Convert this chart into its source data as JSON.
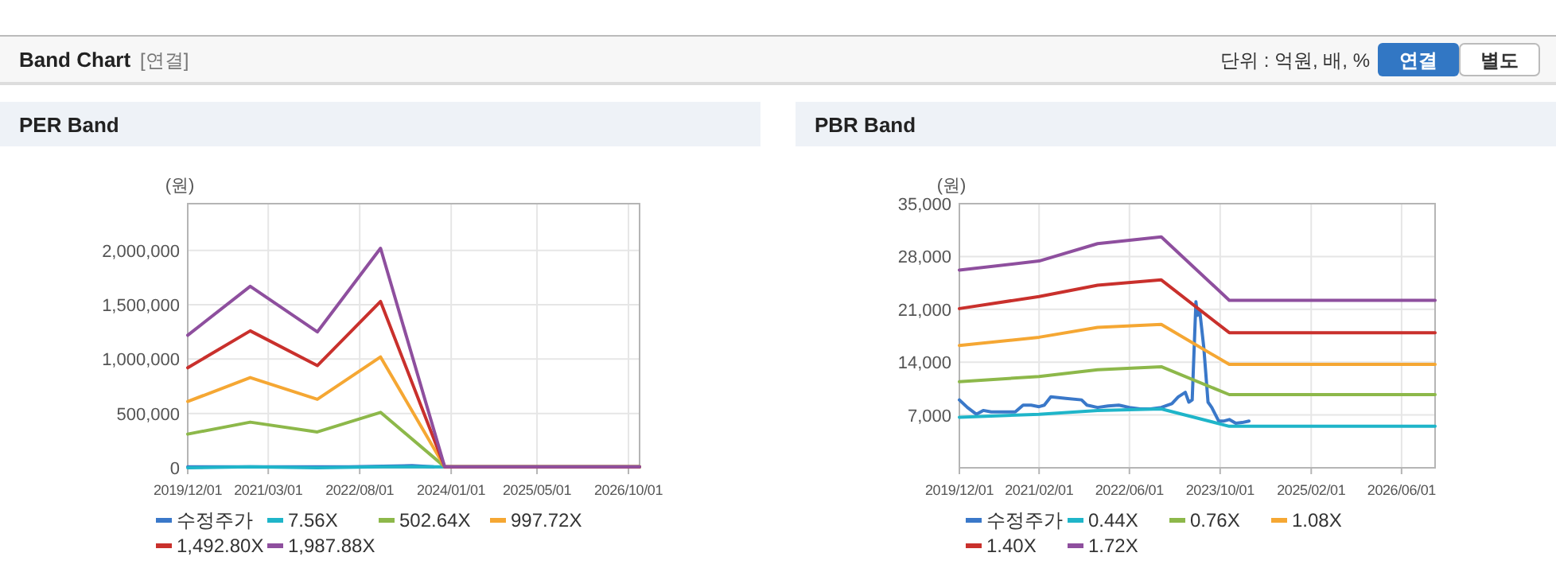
{
  "chart_data": [
    {
      "type": "other",
      "title": "Band Chart",
      "annotations": [
        "[연결]",
        "단위 : 억원, 배, %",
        "연결",
        "별도"
      ]
    },
    {
      "type": "line",
      "title": "PER Band",
      "ylabel": "(원)",
      "grid": true,
      "legend": "bottom",
      "xlim": [
        "2019-12-01",
        "2026-12-03"
      ],
      "ylim": [
        0,
        2430000
      ],
      "xticks": [
        {
          "value": "2019-12-01",
          "label": "2019/12/01"
        },
        {
          "value": "2021-03-01",
          "label": "2021/03/01"
        },
        {
          "value": "2022-08-01",
          "label": "2022/08/01"
        },
        {
          "value": "2024-01-01",
          "label": "2024/01/01"
        },
        {
          "value": "2025-05-01",
          "label": "2025/05/01"
        },
        {
          "value": "2026-10-01",
          "label": "2026/10/01"
        }
      ],
      "yticks": [
        0,
        {
          "value": 500000,
          "label": "500,000"
        },
        {
          "value": 1000000,
          "label": "1,000,000"
        },
        {
          "value": 1500000,
          "label": "1,500,000"
        },
        {
          "value": 2000000,
          "label": "2,000,000"
        }
      ],
      "series": [
        {
          "name": "수정주가",
          "color": "#3a78c9",
          "x": [
            "2019-12-01",
            "2020-05-20",
            "2021-04-05",
            "2022-06-01",
            "2023-05-24",
            "2023-09-23"
          ],
          "values": [
            10000,
            10000,
            10000,
            10000,
            20000,
            10000
          ]
        },
        {
          "name": "7.56X",
          "color": "#1fb5c9",
          "x": [
            "2019-12-01",
            "2020-11-19",
            "2021-12-04",
            "2022-11-27",
            "2023-11-25",
            "2026-12-03"
          ],
          "values": [
            0,
            10000,
            0,
            10000,
            10000,
            10000
          ]
        },
        {
          "name": "502.64X",
          "color": "#8db84a",
          "x": [
            "2019-12-01",
            "2020-11-19",
            "2021-12-04",
            "2022-11-27",
            "2023-11-25",
            "2026-12-03"
          ],
          "values": [
            310000,
            420000,
            330000,
            510000,
            10000,
            10000
          ]
        },
        {
          "name": "997.72X",
          "color": "#f5a733",
          "x": [
            "2019-12-01",
            "2020-11-19",
            "2021-12-04",
            "2022-11-27",
            "2023-11-25",
            "2026-12-03"
          ],
          "values": [
            610000,
            830000,
            630000,
            1020000,
            10000,
            10000
          ]
        },
        {
          "name": "1,492.80X",
          "color": "#c9302c",
          "x": [
            "2019-12-01",
            "2020-11-19",
            "2021-12-04",
            "2022-11-27",
            "2023-11-25",
            "2026-12-03"
          ],
          "values": [
            920000,
            1260000,
            940000,
            1530000,
            10000,
            10000
          ]
        },
        {
          "name": "1,987.88X",
          "color": "#8e4f9e",
          "x": [
            "2019-12-01",
            "2020-11-19",
            "2021-12-04",
            "2022-11-27",
            "2023-11-25",
            "2026-12-03"
          ],
          "values": [
            1220000,
            1670000,
            1250000,
            2020000,
            10000,
            10000
          ]
        }
      ]
    },
    {
      "type": "line",
      "title": "PBR Band",
      "ylabel": "(원)",
      "grid": true,
      "legend": "bottom",
      "xlim": [
        "2019-12-01",
        "2026-11-28"
      ],
      "ylim": [
        0,
        35000
      ],
      "xticks": [
        {
          "value": "2019-12-01",
          "label": "2019/12/01"
        },
        {
          "value": "2021-02-01",
          "label": "2021/02/01"
        },
        {
          "value": "2022-06-01",
          "label": "2022/06/01"
        },
        {
          "value": "2023-10-01",
          "label": "2023/10/01"
        },
        {
          "value": "2025-02-01",
          "label": "2025/02/01"
        },
        {
          "value": "2026-06-01",
          "label": "2026/06/01"
        }
      ],
      "yticks": [
        {
          "value": 7000,
          "label": "7,000"
        },
        {
          "value": 14000,
          "label": "14,000"
        },
        {
          "value": 21000,
          "label": "21,000"
        },
        {
          "value": 28000,
          "label": "28,000"
        },
        {
          "value": 35000,
          "label": "35,000"
        }
      ],
      "series": [
        {
          "name": "수정주가",
          "color": "#3a78c9",
          "x": [
            "2019-12-01",
            "2020-01-13",
            "2020-03-01",
            "2020-04-07",
            "2020-05-20",
            "2020-09-26",
            "2020-11-07",
            "2020-12-20",
            "2021-02-01",
            "2021-03-01",
            "2021-04-05",
            "2021-06-24",
            "2021-09-17",
            "2021-10-16",
            "2021-12-12",
            "2022-02-07",
            "2022-04-05",
            "2022-06-01",
            "2022-07-28",
            "2022-09-23",
            "2022-11-19",
            "2023-01-15",
            "2023-02-18",
            "2023-03-28",
            "2023-04-16",
            "2023-05-04",
            "2023-05-24",
            "2023-06-01",
            "2023-06-13",
            "2023-07-05",
            "2023-07-28",
            "2023-08-17",
            "2023-09-23",
            "2023-10-22",
            "2023-11-19",
            "2023-12-24",
            "2024-01-27",
            "2024-03-04"
          ],
          "values": [
            9000,
            8000,
            7100,
            7600,
            7400,
            7400,
            8300,
            8300,
            8100,
            8300,
            9400,
            9200,
            9000,
            8300,
            8000,
            8200,
            8300,
            8000,
            7800,
            7800,
            8000,
            8500,
            9400,
            10000,
            8700,
            9000,
            22000,
            20200,
            20900,
            16000,
            8700,
            8000,
            6200,
            6200,
            6400,
            5900,
            6000,
            6200
          ]
        },
        {
          "name": "0.44X",
          "color": "#1fb5c9",
          "x": [
            "2019-12-01",
            "2021-02-01",
            "2021-12-12",
            "2022-11-19",
            "2023-11-19",
            "2026-11-28"
          ],
          "values": [
            6700,
            7100,
            7600,
            7800,
            5500,
            5500
          ]
        },
        {
          "name": "0.76X",
          "color": "#8db84a",
          "x": [
            "2019-12-01",
            "2021-02-01",
            "2021-12-12",
            "2022-11-19",
            "2023-11-19",
            "2026-11-28"
          ],
          "values": [
            11400,
            12100,
            13000,
            13400,
            9700,
            9700
          ]
        },
        {
          "name": "1.08X",
          "color": "#f5a733",
          "x": [
            "2019-12-01",
            "2021-02-01",
            "2021-12-12",
            "2022-11-19",
            "2023-11-19",
            "2026-11-28"
          ],
          "values": [
            16200,
            17300,
            18600,
            19000,
            13700,
            13700
          ]
        },
        {
          "name": "1.40X",
          "color": "#c9302c",
          "x": [
            "2019-12-01",
            "2021-02-01",
            "2021-12-12",
            "2022-11-19",
            "2023-11-19",
            "2026-11-28"
          ],
          "values": [
            21100,
            22700,
            24200,
            24900,
            17900,
            17900
          ]
        },
        {
          "name": "1.72X",
          "color": "#8e4f9e",
          "x": [
            "2019-12-01",
            "2021-02-01",
            "2021-12-12",
            "2022-11-19",
            "2023-11-19",
            "2026-11-28"
          ],
          "values": [
            26200,
            27400,
            29700,
            30600,
            22200,
            22200
          ]
        }
      ]
    }
  ]
}
